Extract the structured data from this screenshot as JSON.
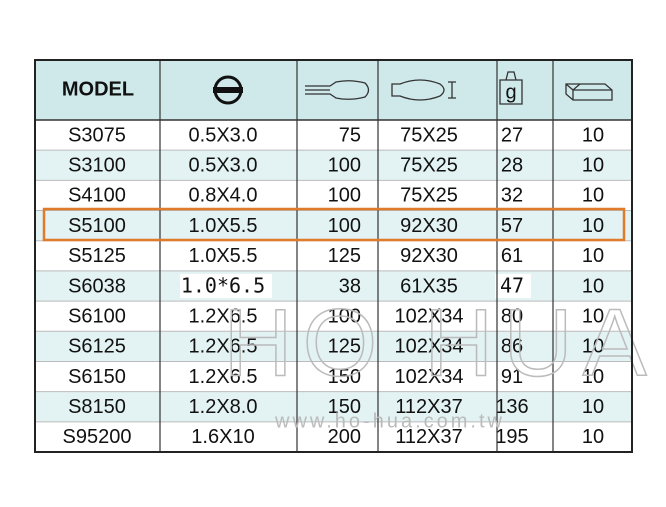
{
  "table": {
    "header": "MODEL",
    "weight_icon_label": "g",
    "rows": [
      [
        "S3075",
        "0.5X3.0",
        "75",
        "75X25",
        "27",
        "10"
      ],
      [
        "S3100",
        "0.5X3.0",
        "100",
        "75X25",
        "28",
        "10"
      ],
      [
        "S4100",
        "0.8X4.0",
        "100",
        "75X25",
        "32",
        "10"
      ],
      [
        "S5100",
        "1.0X5.5",
        "100",
        "92X30",
        "57",
        "10"
      ],
      [
        "S5125",
        "1.0X5.5",
        "125",
        "92X30",
        "61",
        "10"
      ],
      [
        "S6038",
        "1.0*6.5",
        "38",
        "61X35",
        "47",
        "10"
      ],
      [
        "S6100",
        "1.2X6.5",
        "100",
        "102X34",
        "80",
        "10"
      ],
      [
        "S6125",
        "1.2X6.5",
        "125",
        "102X34",
        "86",
        "10"
      ],
      [
        "S6150",
        "1.2X6.5",
        "150",
        "102X34",
        "91",
        "10"
      ],
      [
        "S8150",
        "1.2X8.0",
        "150",
        "112X37",
        "136",
        "10"
      ],
      [
        "S95200",
        "1.6X10",
        "200",
        "112X37",
        "195",
        "10"
      ]
    ]
  },
  "watermark": {
    "logo": "HO HUA",
    "url": "www.ho-hua.com.tw"
  }
}
